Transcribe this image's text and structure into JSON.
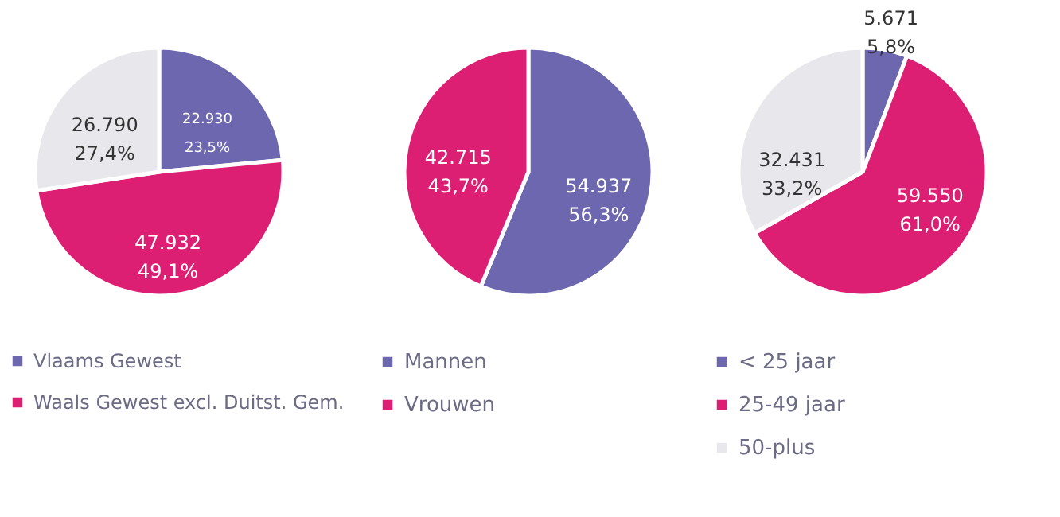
{
  "chart_data": [
    {
      "type": "pie",
      "categories": [
        "Vlaams Gewest",
        "Waals Gewest excl. Duitst. Gem.",
        null
      ],
      "values": [
        22930,
        47932,
        26790
      ],
      "colors": [
        "#6c67ae",
        "#dd1f74",
        "#e8e7ec"
      ],
      "value_labels": [
        "22.930\n23,5%",
        "47.932\n49,1%",
        "26.790\n27,4%"
      ],
      "legend": "bottom"
    },
    {
      "type": "pie",
      "categories": [
        "Mannen",
        "Vrouwen"
      ],
      "values": [
        54937,
        42715
      ],
      "colors": [
        "#6c67ae",
        "#dd1f74"
      ],
      "value_labels": [
        "54.937\n56,3%",
        "42.715\n43,7%"
      ],
      "legend": "bottom"
    },
    {
      "type": "pie",
      "categories": [
        "< 25 jaar",
        "25-49 jaar",
        "50-plus"
      ],
      "values": [
        5671,
        59550,
        32431
      ],
      "colors": [
        "#6c67ae",
        "#dd1f74",
        "#e8e7ec"
      ],
      "value_labels": [
        "5.671\n5,8%",
        "59.550\n61,0%",
        "32.431\n33,2%"
      ],
      "legend": "bottom"
    }
  ]
}
